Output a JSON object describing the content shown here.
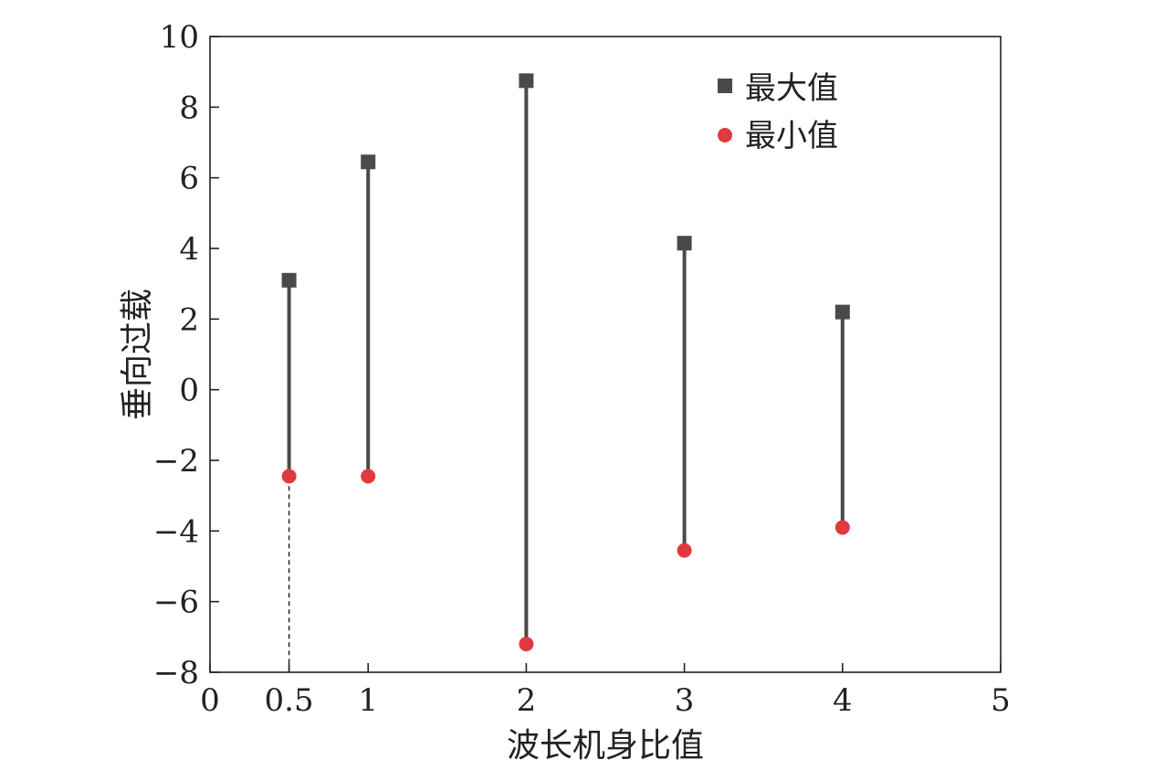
{
  "chart_data": {
    "type": "scatter",
    "xlabel": "波长机身比值",
    "ylabel": "垂向过载",
    "xlim": [
      0,
      5
    ],
    "ylim": [
      -8,
      10
    ],
    "x_ticks": [
      0,
      0.5,
      1,
      2,
      3,
      4,
      5
    ],
    "x_tick_labels": [
      "0",
      "0.5",
      "1",
      "2",
      "3",
      "4",
      "5"
    ],
    "y_ticks": [
      -8,
      -6,
      -4,
      -2,
      0,
      2,
      4,
      6,
      8,
      10
    ],
    "y_tick_labels": [
      "−8",
      "−6",
      "−4",
      "−2",
      "0",
      "2",
      "4",
      "6",
      "8",
      "10"
    ],
    "grid": false,
    "legend_position": "top-right",
    "x": [
      0.5,
      1,
      2,
      3,
      4
    ],
    "series": [
      {
        "name": "最大值",
        "marker": "square",
        "color": "#4a4a4a",
        "values": [
          3.1,
          6.45,
          8.75,
          4.15,
          2.2
        ]
      },
      {
        "name": "最小值",
        "marker": "circle",
        "color": "#e03a3e",
        "values": [
          -2.45,
          -2.45,
          -7.2,
          -4.55,
          -3.9
        ]
      }
    ],
    "range_line_color": "#4a4a4a",
    "reference_line": {
      "x": 0.5,
      "from": -8,
      "to": -1.8,
      "style": "dashed"
    }
  }
}
